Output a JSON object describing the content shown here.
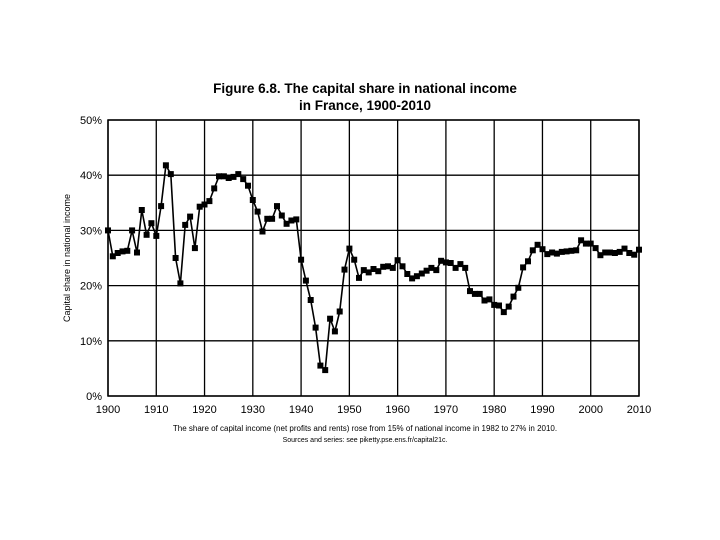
{
  "chart_data": {
    "type": "line",
    "title_line1": "Figure 6.8. The capital share in national income",
    "title_line2": "in France, 1900-2010",
    "ylabel": "Capital share in national income",
    "xlabel": "",
    "caption": "The share of capital income (net profits and rents) rose from 15% of national income in 1982 to 27% in 2010.",
    "source": "Sources and series: see piketty.pse.ens.fr/capital21c.",
    "xlim": [
      1900,
      2010
    ],
    "ylim": [
      0,
      0.5
    ],
    "x_ticks": [
      1900,
      1910,
      1920,
      1930,
      1940,
      1950,
      1960,
      1970,
      1980,
      1990,
      2000,
      2010
    ],
    "x_tick_labels": [
      "1900",
      "1910",
      "1920",
      "1930",
      "1940",
      "1950",
      "1960",
      "1970",
      "1980",
      "1990",
      "2000",
      "2010"
    ],
    "y_ticks": [
      0,
      0.1,
      0.2,
      0.3,
      0.4,
      0.5
    ],
    "y_tick_labels": [
      "0%",
      "10%",
      "20%",
      "30%",
      "40%",
      "50%"
    ],
    "grid": true,
    "marker": "square",
    "line_color": "#000000",
    "series": [
      {
        "x": [
          1900,
          1901,
          1902,
          1903,
          1904,
          1905,
          1906,
          1907,
          1908,
          1909,
          1910,
          1911,
          1912,
          1913,
          1914,
          1915,
          1916,
          1917,
          1918,
          1919,
          1920,
          1921,
          1922,
          1923,
          1924,
          1925,
          1926,
          1927,
          1928,
          1929,
          1930,
          1931,
          1932,
          1933,
          1934,
          1935,
          1936,
          1937,
          1938,
          1939,
          1940,
          1941,
          1942,
          1943,
          1944,
          1945,
          1946,
          1947,
          1948,
          1949,
          1950,
          1951,
          1952,
          1953,
          1954,
          1955,
          1956,
          1957,
          1958,
          1959,
          1960,
          1961,
          1962,
          1963,
          1964,
          1965,
          1966,
          1967,
          1968,
          1969,
          1970,
          1971,
          1972,
          1973,
          1974,
          1975,
          1976,
          1977,
          1978,
          1979,
          1980,
          1981,
          1982,
          1983,
          1984,
          1985,
          1986,
          1987,
          1988,
          1989,
          1990,
          1991,
          1992,
          1993,
          1994,
          1995,
          1996,
          1997,
          1998,
          1999,
          2000,
          2001,
          2002,
          2003,
          2004,
          2005,
          2006,
          2007,
          2008,
          2009,
          2010
        ],
        "y": [
          0.3,
          0.253,
          0.259,
          0.262,
          0.263,
          0.3,
          0.26,
          0.337,
          0.292,
          0.313,
          0.29,
          0.344,
          0.418,
          0.402,
          0.25,
          0.204,
          0.31,
          0.325,
          0.268,
          0.343,
          0.347,
          0.353,
          0.376,
          0.398,
          0.398,
          0.395,
          0.397,
          0.402,
          0.393,
          0.381,
          0.355,
          0.334,
          0.298,
          0.321,
          0.321,
          0.344,
          0.327,
          0.312,
          0.318,
          0.32,
          0.247,
          0.209,
          0.174,
          0.124,
          0.055,
          0.047,
          0.14,
          0.117,
          0.153,
          0.229,
          0.267,
          0.247,
          0.214,
          0.228,
          0.224,
          0.23,
          0.226,
          0.234,
          0.235,
          0.232,
          0.246,
          0.235,
          0.221,
          0.213,
          0.217,
          0.222,
          0.227,
          0.232,
          0.228,
          0.245,
          0.242,
          0.241,
          0.232,
          0.239,
          0.232,
          0.19,
          0.185,
          0.185,
          0.173,
          0.175,
          0.165,
          0.164,
          0.152,
          0.162,
          0.18,
          0.196,
          0.233,
          0.244,
          0.264,
          0.274,
          0.266,
          0.257,
          0.26,
          0.258,
          0.261,
          0.262,
          0.263,
          0.264,
          0.282,
          0.276,
          0.276,
          0.268,
          0.255,
          0.26,
          0.26,
          0.259,
          0.261,
          0.267,
          0.259,
          0.256,
          0.265
        ]
      }
    ]
  }
}
